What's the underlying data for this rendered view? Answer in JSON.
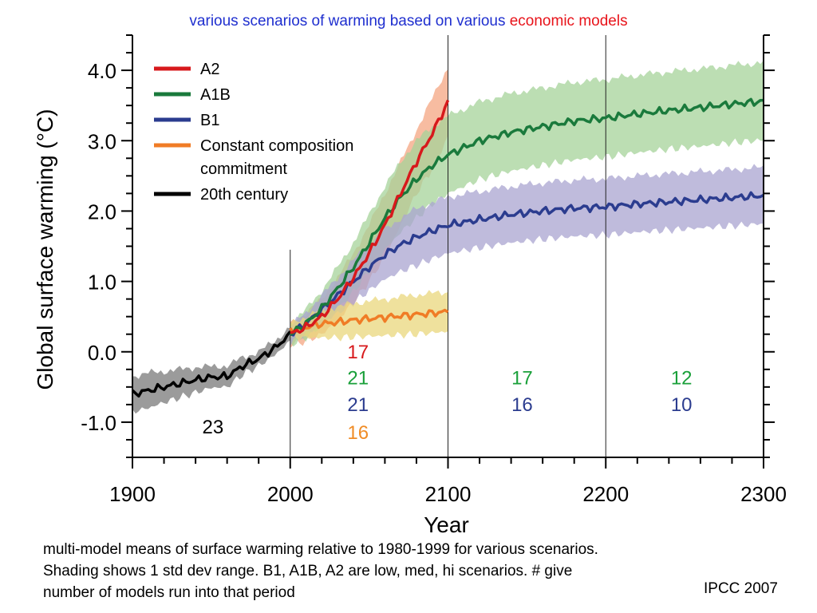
{
  "header": {
    "title_part1": "various scenarios of warming based on various",
    "title_part2": "economic models",
    "title_part1_color": "#1f2fcf",
    "title_part2_color": "#e8131a"
  },
  "caption": {
    "lines": [
      "multi-model means of surface warming relative to 1980-1999 for various scenarios.",
      "Shading shows 1 std dev range.  B1, A1B, A2 are low, med, hi scenarios.  # give",
      "number of models run into that period"
    ]
  },
  "credit": "IPCC 2007",
  "chart_data": {
    "type": "line",
    "title": "",
    "xlabel": "Year",
    "ylabel": "Global surface warming (°C)",
    "xlim": [
      1900,
      2300
    ],
    "ylim": [
      -1.5,
      4.5
    ],
    "x_ticks": [
      1900,
      2000,
      2100,
      2200,
      2300
    ],
    "x_tick_labels": [
      "1900",
      "2000",
      "2100",
      "2200",
      "2300"
    ],
    "y_ticks": [
      -1.0,
      0.0,
      1.0,
      2.0,
      3.0,
      4.0
    ],
    "y_tick_labels": [
      "-1.0",
      "0.0",
      "1.0",
      "2.0",
      "3.0",
      "4.0"
    ],
    "grid": false,
    "legend_position": "top-left",
    "vertical_lines": [
      2000,
      2100,
      2200
    ],
    "series": [
      {
        "name": "A2",
        "color": "#d7191c",
        "band_color": "#f4a582",
        "x": [
          2000,
          2010,
          2020,
          2030,
          2040,
          2050,
          2060,
          2070,
          2080,
          2090,
          2100
        ],
        "values": [
          0.25,
          0.35,
          0.5,
          0.75,
          1.05,
          1.4,
          1.8,
          2.25,
          2.7,
          3.1,
          3.55
        ],
        "band": [
          0.15,
          0.2,
          0.25,
          0.3,
          0.35,
          0.4,
          0.45,
          0.45,
          0.45,
          0.5,
          0.5
        ]
      },
      {
        "name": "A1B",
        "color": "#1a7a3c",
        "band_color": "#a6d39a",
        "x": [
          2000,
          2010,
          2020,
          2030,
          2040,
          2050,
          2060,
          2070,
          2080,
          2090,
          2100,
          2120,
          2140,
          2160,
          2180,
          2200,
          2220,
          2240,
          2260,
          2280,
          2300
        ],
        "values": [
          0.25,
          0.4,
          0.62,
          0.9,
          1.2,
          1.55,
          1.9,
          2.2,
          2.45,
          2.65,
          2.8,
          3.0,
          3.12,
          3.2,
          3.28,
          3.32,
          3.38,
          3.43,
          3.47,
          3.52,
          3.56
        ],
        "band": [
          0.15,
          0.2,
          0.25,
          0.3,
          0.35,
          0.4,
          0.45,
          0.5,
          0.55,
          0.55,
          0.55,
          0.55,
          0.55,
          0.55,
          0.55,
          0.55,
          0.55,
          0.55,
          0.55,
          0.55,
          0.55
        ]
      },
      {
        "name": "B1",
        "color": "#2b3c8f",
        "band_color": "#a9a4d0",
        "x": [
          2000,
          2010,
          2020,
          2030,
          2040,
          2050,
          2060,
          2070,
          2080,
          2090,
          2100,
          2120,
          2140,
          2160,
          2180,
          2200,
          2220,
          2240,
          2260,
          2280,
          2300
        ],
        "values": [
          0.25,
          0.4,
          0.6,
          0.8,
          1.0,
          1.2,
          1.38,
          1.52,
          1.63,
          1.72,
          1.8,
          1.88,
          1.95,
          2.0,
          2.04,
          2.06,
          2.1,
          2.13,
          2.16,
          2.19,
          2.22
        ],
        "band": [
          0.12,
          0.15,
          0.2,
          0.25,
          0.3,
          0.33,
          0.35,
          0.38,
          0.4,
          0.4,
          0.4,
          0.4,
          0.4,
          0.4,
          0.4,
          0.4,
          0.4,
          0.4,
          0.4,
          0.4,
          0.4
        ]
      },
      {
        "name": "Constant composition commitment",
        "name_lines": [
          "Constant composition",
          "commitment"
        ],
        "color": "#f07c26",
        "band_color": "#ead77c",
        "x": [
          2000,
          2010,
          2020,
          2030,
          2040,
          2050,
          2060,
          2070,
          2080,
          2090,
          2100
        ],
        "values": [
          0.3,
          0.35,
          0.4,
          0.42,
          0.45,
          0.47,
          0.49,
          0.51,
          0.53,
          0.55,
          0.57
        ],
        "band": [
          0.1,
          0.15,
          0.2,
          0.22,
          0.24,
          0.25,
          0.26,
          0.27,
          0.28,
          0.28,
          0.28
        ]
      },
      {
        "name": "20th century",
        "color": "#000000",
        "band_color": "#7a7a7a",
        "x": [
          1900,
          1910,
          1920,
          1930,
          1940,
          1950,
          1960,
          1970,
          1980,
          1990,
          2000
        ],
        "values": [
          -0.6,
          -0.55,
          -0.5,
          -0.45,
          -0.4,
          -0.36,
          -0.35,
          -0.2,
          -0.1,
          0.05,
          0.25
        ],
        "band": [
          0.25,
          0.25,
          0.22,
          0.2,
          0.18,
          0.15,
          0.15,
          0.12,
          0.1,
          0.1,
          0.1
        ]
      }
    ],
    "annotations": [
      {
        "text": "23",
        "x": 1951,
        "y": -1.07,
        "color": "#000000"
      },
      {
        "text": "17",
        "x": 2043,
        "y": 0.0,
        "color": "#d7191c"
      },
      {
        "text": "21",
        "x": 2043,
        "y": -0.37,
        "color": "#1aa03a"
      },
      {
        "text": "21",
        "x": 2043,
        "y": -0.75,
        "color": "#2b3c8f"
      },
      {
        "text": "16",
        "x": 2043,
        "y": -1.15,
        "color": "#f08c26"
      },
      {
        "text": "17",
        "x": 2147,
        "y": -0.37,
        "color": "#1aa03a"
      },
      {
        "text": "16",
        "x": 2147,
        "y": -0.75,
        "color": "#2b3c8f"
      },
      {
        "text": "12",
        "x": 2248,
        "y": -0.37,
        "color": "#1aa03a"
      },
      {
        "text": "10",
        "x": 2248,
        "y": -0.75,
        "color": "#2b3c8f"
      }
    ]
  }
}
